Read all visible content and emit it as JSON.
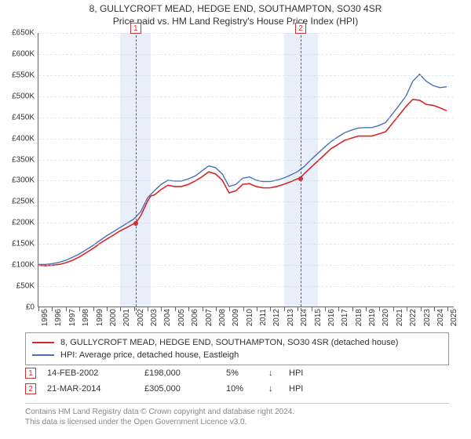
{
  "title_main": "8, GULLYCROFT MEAD, HEDGE END, SOUTHAMPTON, SO30 4SR",
  "title_sub": "Price paid vs. HM Land Registry's House Price Index (HPI)",
  "colors": {
    "series_property": "#d62728",
    "series_hpi": "#4a6fb3",
    "grid": "#c8d4e6",
    "band": "#e9eff9",
    "band_edge": "#cc3333",
    "sale_dot": "#cc3333",
    "text": "#333333",
    "footnote": "#888888"
  },
  "chart": {
    "type": "line",
    "x_start": 1995,
    "x_end": 2025.5,
    "y_min": 0,
    "y_max": 650000,
    "y_tick_step": 50000,
    "y_tick_labels": [
      "£0",
      "£50K",
      "£100K",
      "£150K",
      "£200K",
      "£250K",
      "£300K",
      "£350K",
      "£400K",
      "£450K",
      "£500K",
      "£550K",
      "£600K",
      "£650K"
    ],
    "x_ticks": [
      1995,
      1996,
      1997,
      1998,
      1999,
      2000,
      2001,
      2002,
      2003,
      2004,
      2005,
      2006,
      2007,
      2008,
      2009,
      2010,
      2011,
      2012,
      2013,
      2014,
      2015,
      2016,
      2017,
      2018,
      2019,
      2020,
      2021,
      2022,
      2023,
      2024,
      2025
    ],
    "shaded_bands": [
      {
        "from": 2001.0,
        "to": 2003.25
      },
      {
        "from": 2013.0,
        "to": 2015.5
      }
    ],
    "band_markers": [
      {
        "x": 2002.12,
        "label": "1"
      },
      {
        "x": 2014.22,
        "label": "2"
      }
    ],
    "sale_points": [
      {
        "x": 2002.12,
        "y": 198000
      },
      {
        "x": 2014.22,
        "y": 305000
      }
    ],
    "series": [
      {
        "name": "property",
        "color": "#d62728",
        "width": 1.6,
        "points": [
          [
            1995.0,
            98000
          ],
          [
            1995.5,
            97000
          ],
          [
            1996.0,
            98000
          ],
          [
            1996.5,
            100000
          ],
          [
            1997.0,
            104000
          ],
          [
            1997.5,
            110000
          ],
          [
            1998.0,
            118000
          ],
          [
            1998.5,
            128000
          ],
          [
            1999.0,
            138000
          ],
          [
            1999.5,
            150000
          ],
          [
            2000.0,
            160000
          ],
          [
            2000.5,
            170000
          ],
          [
            2001.0,
            180000
          ],
          [
            2001.5,
            188000
          ],
          [
            2002.0,
            197000
          ],
          [
            2002.12,
            198000
          ],
          [
            2002.5,
            215000
          ],
          [
            2003.0,
            250000
          ],
          [
            2003.25,
            263000
          ],
          [
            2003.5,
            265000
          ],
          [
            2004.0,
            278000
          ],
          [
            2004.5,
            288000
          ],
          [
            2005.0,
            285000
          ],
          [
            2005.5,
            285000
          ],
          [
            2006.0,
            290000
          ],
          [
            2006.5,
            298000
          ],
          [
            2007.0,
            308000
          ],
          [
            2007.5,
            320000
          ],
          [
            2008.0,
            315000
          ],
          [
            2008.5,
            300000
          ],
          [
            2009.0,
            270000
          ],
          [
            2009.5,
            275000
          ],
          [
            2010.0,
            290000
          ],
          [
            2010.5,
            292000
          ],
          [
            2011.0,
            285000
          ],
          [
            2011.5,
            282000
          ],
          [
            2012.0,
            282000
          ],
          [
            2012.5,
            285000
          ],
          [
            2013.0,
            290000
          ],
          [
            2013.5,
            296000
          ],
          [
            2014.0,
            303000
          ],
          [
            2014.22,
            305000
          ],
          [
            2014.5,
            315000
          ],
          [
            2015.0,
            330000
          ],
          [
            2015.5,
            345000
          ],
          [
            2016.0,
            360000
          ],
          [
            2016.5,
            375000
          ],
          [
            2017.0,
            385000
          ],
          [
            2017.5,
            395000
          ],
          [
            2018.0,
            400000
          ],
          [
            2018.5,
            405000
          ],
          [
            2019.0,
            405000
          ],
          [
            2019.5,
            405000
          ],
          [
            2020.0,
            410000
          ],
          [
            2020.5,
            415000
          ],
          [
            2021.0,
            435000
          ],
          [
            2021.5,
            455000
          ],
          [
            2022.0,
            475000
          ],
          [
            2022.5,
            492000
          ],
          [
            2023.0,
            490000
          ],
          [
            2023.5,
            480000
          ],
          [
            2024.0,
            478000
          ],
          [
            2024.5,
            472000
          ],
          [
            2025.0,
            465000
          ]
        ]
      },
      {
        "name": "hpi",
        "color": "#4a6fb3",
        "width": 1.4,
        "points": [
          [
            1995.0,
            100000
          ],
          [
            1995.5,
            100000
          ],
          [
            1996.0,
            102000
          ],
          [
            1996.5,
            105000
          ],
          [
            1997.0,
            110000
          ],
          [
            1997.5,
            117000
          ],
          [
            1998.0,
            125000
          ],
          [
            1998.5,
            135000
          ],
          [
            1999.0,
            145000
          ],
          [
            1999.5,
            157000
          ],
          [
            2000.0,
            168000
          ],
          [
            2000.5,
            178000
          ],
          [
            2001.0,
            188000
          ],
          [
            2001.5,
            198000
          ],
          [
            2002.0,
            208000
          ],
          [
            2002.5,
            225000
          ],
          [
            2003.0,
            258000
          ],
          [
            2003.5,
            275000
          ],
          [
            2004.0,
            290000
          ],
          [
            2004.5,
            300000
          ],
          [
            2005.0,
            298000
          ],
          [
            2005.5,
            298000
          ],
          [
            2006.0,
            303000
          ],
          [
            2006.5,
            310000
          ],
          [
            2007.0,
            322000
          ],
          [
            2007.5,
            334000
          ],
          [
            2008.0,
            330000
          ],
          [
            2008.5,
            315000
          ],
          [
            2009.0,
            285000
          ],
          [
            2009.5,
            290000
          ],
          [
            2010.0,
            305000
          ],
          [
            2010.5,
            308000
          ],
          [
            2011.0,
            300000
          ],
          [
            2011.5,
            297000
          ],
          [
            2012.0,
            297000
          ],
          [
            2012.5,
            300000
          ],
          [
            2013.0,
            305000
          ],
          [
            2013.5,
            312000
          ],
          [
            2014.0,
            320000
          ],
          [
            2014.5,
            332000
          ],
          [
            2015.0,
            348000
          ],
          [
            2015.5,
            363000
          ],
          [
            2016.0,
            378000
          ],
          [
            2016.5,
            392000
          ],
          [
            2017.0,
            403000
          ],
          [
            2017.5,
            413000
          ],
          [
            2018.0,
            419000
          ],
          [
            2018.5,
            424000
          ],
          [
            2019.0,
            425000
          ],
          [
            2019.5,
            425000
          ],
          [
            2020.0,
            430000
          ],
          [
            2020.5,
            437000
          ],
          [
            2021.0,
            457000
          ],
          [
            2021.5,
            478000
          ],
          [
            2022.0,
            500000
          ],
          [
            2022.5,
            535000
          ],
          [
            2023.0,
            552000
          ],
          [
            2023.5,
            535000
          ],
          [
            2024.0,
            525000
          ],
          [
            2024.5,
            520000
          ],
          [
            2025.0,
            522000
          ]
        ]
      }
    ]
  },
  "legend": {
    "items": [
      {
        "color": "#d62728",
        "label": "8, GULLYCROFT MEAD, HEDGE END, SOUTHAMPTON, SO30 4SR (detached house)"
      },
      {
        "color": "#4a6fb3",
        "label": "HPI: Average price, detached house, Eastleigh"
      }
    ]
  },
  "transactions": [
    {
      "idx": "1",
      "date": "14-FEB-2002",
      "price": "£198,000",
      "delta": "5%",
      "arrow": "↓",
      "vs": "HPI"
    },
    {
      "idx": "2",
      "date": "21-MAR-2014",
      "price": "£305,000",
      "delta": "10%",
      "arrow": "↓",
      "vs": "HPI"
    }
  ],
  "footnote_l1": "Contains HM Land Registry data © Crown copyright and database right 2024.",
  "footnote_l2": "This data is licensed under the Open Government Licence v3.0."
}
